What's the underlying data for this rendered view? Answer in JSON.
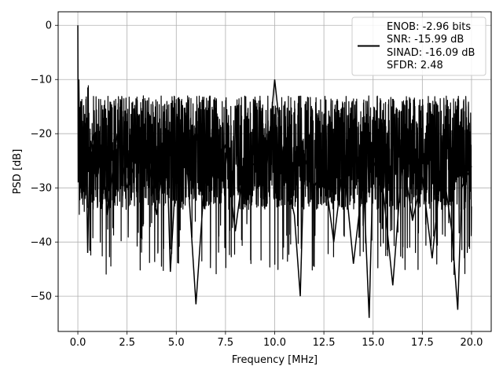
{
  "chart_data": {
    "type": "line",
    "title": "",
    "xlabel": "Frequency [MHz]",
    "ylabel": "PSD [dB]",
    "xlim": [
      -1.0,
      21.0
    ],
    "ylim": [
      -56.5,
      2.5
    ],
    "xticks": [
      0.0,
      2.5,
      5.0,
      7.5,
      10.0,
      12.5,
      15.0,
      17.5,
      20.0
    ],
    "xtick_labels": [
      "0.0",
      "2.5",
      "5.0",
      "7.5",
      "10.0",
      "12.5",
      "15.0",
      "17.5",
      "20.0"
    ],
    "yticks": [
      0,
      -10,
      -20,
      -30,
      -40,
      -50
    ],
    "ytick_labels": [
      "0",
      "−10",
      "−20",
      "−30",
      "−40",
      "−50"
    ],
    "grid": true,
    "line_color": "#000000",
    "legend_placement": "top-right",
    "legend": [
      "ENOB: -2.96 bits",
      "SNR: -15.99 dB",
      "SINAD: -16.09 dB",
      "SFDR: 2.48"
    ],
    "series": [
      {
        "x": [
          0.0,
          0.02,
          0.05,
          0.1,
          0.15,
          0.2,
          0.3,
          0.4,
          0.5,
          0.6,
          0.8,
          1.0,
          1.2,
          1.5,
          2.0,
          2.5,
          3.0,
          3.5,
          4.0,
          4.5,
          4.7,
          5.0,
          5.5,
          6.0,
          6.5,
          7.0,
          7.5,
          8.0,
          8.5,
          9.0,
          9.5,
          10.0,
          10.5,
          11.0,
          11.3,
          11.5,
          12.0,
          12.5,
          13.0,
          13.5,
          14.0,
          14.5,
          14.8,
          15.0,
          15.5,
          16.0,
          16.5,
          17.0,
          17.5,
          18.0,
          18.5,
          19.0,
          19.3,
          19.5,
          20.0
        ],
        "y": [
          0.0,
          -29.0,
          -10.0,
          -25.0,
          -14.0,
          -31.0,
          -22.0,
          -18.0,
          -42.0,
          -24.0,
          -20.0,
          -28.0,
          -22.0,
          -35.0,
          -20.0,
          -30.0,
          -24.0,
          -22.0,
          -35.0,
          -20.0,
          -45.5,
          -26.0,
          -23.0,
          -51.5,
          -25.0,
          -28.0,
          -22.0,
          -38.0,
          -24.0,
          -26.0,
          -30.0,
          -10.0,
          -27.0,
          -35.0,
          -50.0,
          -24.0,
          -30.0,
          -26.0,
          -40.0,
          -25.0,
          -44.0,
          -28.0,
          -54.0,
          -25.0,
          -30.0,
          -48.0,
          -24.0,
          -36.0,
          -28.0,
          -43.0,
          -25.0,
          -38.0,
          -52.5,
          -30.0,
          -26.0
        ]
      }
    ]
  }
}
